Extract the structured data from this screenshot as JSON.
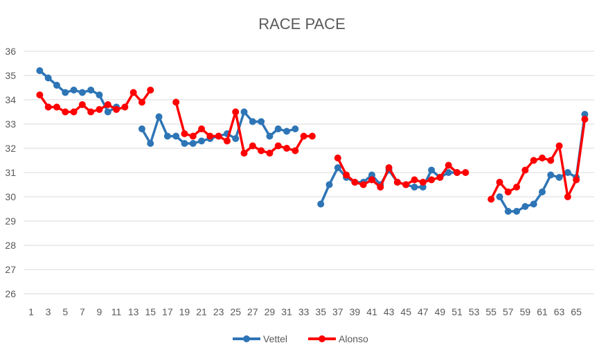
{
  "chart_data": {
    "type": "line",
    "title": "RACE PACE",
    "xlabel": "",
    "ylabel": "",
    "x": [
      1,
      2,
      3,
      4,
      5,
      6,
      7,
      8,
      9,
      10,
      11,
      12,
      13,
      14,
      15,
      16,
      17,
      18,
      19,
      20,
      21,
      22,
      23,
      24,
      25,
      26,
      27,
      28,
      29,
      30,
      31,
      32,
      33,
      34,
      35,
      36,
      37,
      38,
      39,
      40,
      41,
      42,
      43,
      44,
      45,
      46,
      47,
      48,
      49,
      50,
      51,
      52,
      53,
      54,
      55,
      56,
      57,
      58,
      59,
      60,
      61,
      62,
      63,
      64,
      65,
      66
    ],
    "x_tick_labels": [
      "1",
      "3",
      "5",
      "7",
      "9",
      "11",
      "13",
      "15",
      "17",
      "19",
      "21",
      "23",
      "25",
      "27",
      "29",
      "31",
      "33",
      "35",
      "37",
      "39",
      "41",
      "43",
      "45",
      "47",
      "49",
      "51",
      "53",
      "55",
      "57",
      "59",
      "61",
      "63",
      "65"
    ],
    "ylim": [
      26,
      36
    ],
    "y_ticks": [
      26,
      27,
      28,
      29,
      30,
      31,
      32,
      33,
      34,
      35,
      36
    ],
    "grid": true,
    "legend_position": "bottom",
    "series": [
      {
        "name": "Vettel",
        "color": "#2E75B6",
        "values": [
          null,
          35.2,
          34.9,
          34.6,
          34.3,
          34.4,
          34.3,
          34.4,
          34.2,
          33.5,
          33.7,
          null,
          null,
          32.8,
          32.2,
          33.3,
          32.5,
          32.5,
          32.2,
          32.2,
          32.3,
          32.4,
          32.5,
          32.6,
          32.4,
          33.5,
          33.1,
          33.1,
          32.5,
          32.8,
          32.7,
          32.8,
          null,
          null,
          29.7,
          30.5,
          31.2,
          30.8,
          30.6,
          30.6,
          30.9,
          30.5,
          31.1,
          30.6,
          30.5,
          30.4,
          30.4,
          31.1,
          30.8,
          31.0,
          31.0,
          null,
          null,
          null,
          null,
          30.0,
          29.4,
          29.4,
          29.6,
          29.7,
          30.2,
          30.9,
          30.8,
          31.0,
          30.8,
          33.4
        ]
      },
      {
        "name": "Alonso",
        "color": "#FF0000",
        "values": [
          null,
          34.2,
          33.7,
          33.7,
          33.5,
          33.5,
          33.8,
          33.5,
          33.6,
          33.8,
          33.6,
          33.7,
          34.3,
          33.9,
          34.4,
          null,
          null,
          33.9,
          32.6,
          32.5,
          32.8,
          32.5,
          32.5,
          32.3,
          33.5,
          31.8,
          32.1,
          31.9,
          31.8,
          32.1,
          32.0,
          31.9,
          32.5,
          32.5,
          null,
          null,
          31.6,
          30.9,
          30.6,
          30.5,
          30.7,
          30.4,
          31.2,
          30.6,
          30.5,
          30.7,
          30.6,
          30.7,
          30.8,
          31.3,
          31.0,
          31.0,
          null,
          null,
          29.9,
          30.6,
          30.2,
          30.4,
          31.1,
          31.5,
          31.6,
          31.5,
          32.1,
          30.0,
          30.7,
          33.2
        ]
      }
    ]
  }
}
